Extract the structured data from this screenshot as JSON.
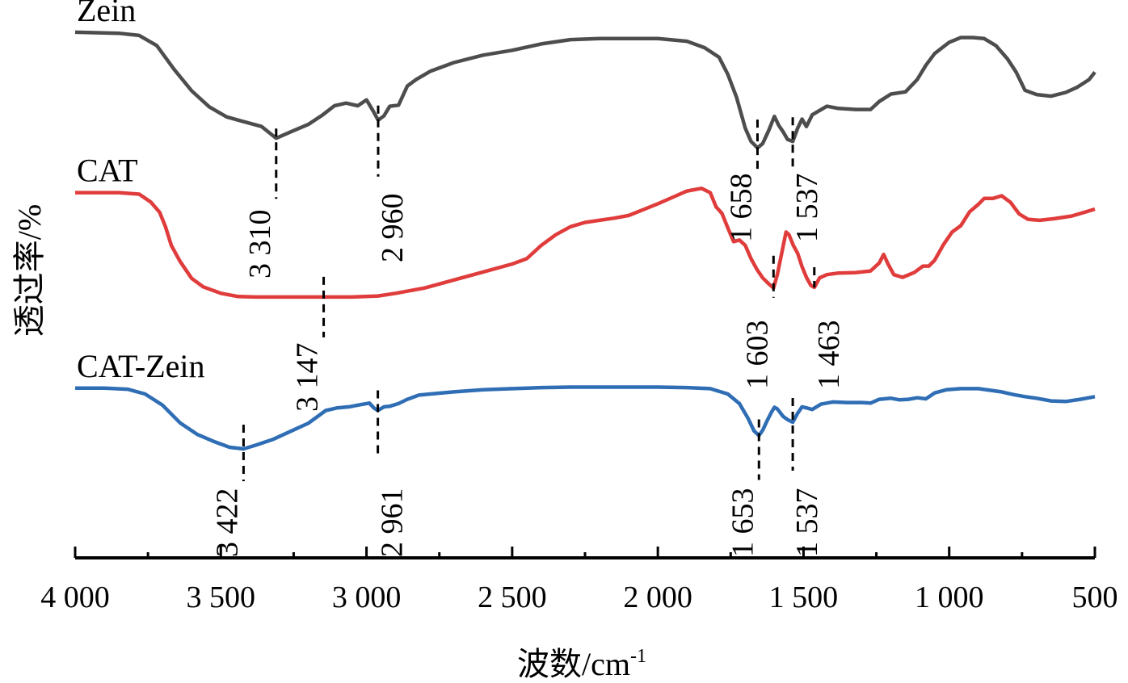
{
  "chart_data": {
    "type": "line",
    "title": "",
    "xlabel": "波数/cm⁻¹",
    "xlabel_main": "波数/cm",
    "xlabel_sup": "-1",
    "ylabel": "透过率/%",
    "xlim": [
      4000,
      500
    ],
    "ylim": [
      0,
      100
    ],
    "x_reversed": true,
    "grid": false,
    "legend": "inline-labels-left",
    "x_ticks": [
      4000,
      3500,
      3000,
      2500,
      2000,
      1500,
      1000,
      500
    ],
    "x_tick_labels": [
      "4 000",
      "3 500",
      "3 000",
      "2 500",
      "2 000",
      "1 500",
      "1 000",
      "500"
    ],
    "x_minor_ticks": [
      3750,
      3250,
      2750,
      2250,
      1750,
      1250,
      750
    ],
    "series": [
      {
        "name": "Zein",
        "color": "#4d4d4d",
        "points": [
          [
            4000,
            98.5
          ],
          [
            3850,
            98.3
          ],
          [
            3780,
            97.9
          ],
          [
            3720,
            96.0
          ],
          [
            3660,
            91.5
          ],
          [
            3600,
            87.5
          ],
          [
            3540,
            84.5
          ],
          [
            3480,
            82.6
          ],
          [
            3420,
            81.7
          ],
          [
            3360,
            80.8
          ],
          [
            3310,
            78.6
          ],
          [
            3260,
            79.8
          ],
          [
            3200,
            81.2
          ],
          [
            3150,
            83.0
          ],
          [
            3110,
            84.7
          ],
          [
            3070,
            85.2
          ],
          [
            3030,
            84.7
          ],
          [
            3000,
            85.8
          ],
          [
            2975,
            83.5
          ],
          [
            2960,
            82.0
          ],
          [
            2940,
            82.8
          ],
          [
            2920,
            84.6
          ],
          [
            2890,
            84.8
          ],
          [
            2860,
            88.4
          ],
          [
            2830,
            89.6
          ],
          [
            2780,
            91.2
          ],
          [
            2700,
            92.8
          ],
          [
            2600,
            94.2
          ],
          [
            2500,
            95.1
          ],
          [
            2400,
            96.3
          ],
          [
            2300,
            97.1
          ],
          [
            2200,
            97.3
          ],
          [
            2100,
            97.3
          ],
          [
            2000,
            97.3
          ],
          [
            1900,
            96.8
          ],
          [
            1840,
            95.6
          ],
          [
            1790,
            93.8
          ],
          [
            1760,
            90.6
          ],
          [
            1730,
            86.3
          ],
          [
            1700,
            80.5
          ],
          [
            1680,
            78.0
          ],
          [
            1658,
            76.8
          ],
          [
            1640,
            77.6
          ],
          [
            1620,
            80.0
          ],
          [
            1600,
            82.7
          ],
          [
            1585,
            81.0
          ],
          [
            1570,
            79.8
          ],
          [
            1555,
            78.4
          ],
          [
            1537,
            78.0
          ],
          [
            1520,
            80.5
          ],
          [
            1505,
            82.2
          ],
          [
            1490,
            80.8
          ],
          [
            1470,
            83.0
          ],
          [
            1420,
            84.6
          ],
          [
            1380,
            84.2
          ],
          [
            1320,
            84.0
          ],
          [
            1270,
            84.0
          ],
          [
            1240,
            85.5
          ],
          [
            1200,
            86.9
          ],
          [
            1150,
            87.3
          ],
          [
            1110,
            89.6
          ],
          [
            1080,
            92.3
          ],
          [
            1050,
            94.5
          ],
          [
            1000,
            96.6
          ],
          [
            960,
            97.5
          ],
          [
            920,
            97.5
          ],
          [
            880,
            97.3
          ],
          [
            840,
            96.0
          ],
          [
            800,
            93.5
          ],
          [
            770,
            91.0
          ],
          [
            740,
            87.6
          ],
          [
            700,
            86.8
          ],
          [
            650,
            86.5
          ],
          [
            600,
            87.2
          ],
          [
            560,
            88.2
          ],
          [
            520,
            89.6
          ],
          [
            500,
            91.0
          ]
        ]
      },
      {
        "name": "CAT",
        "color": "#e03c3c",
        "points": [
          [
            4000,
            68.4
          ],
          [
            3850,
            68.4
          ],
          [
            3780,
            68.1
          ],
          [
            3740,
            66.6
          ],
          [
            3710,
            64.7
          ],
          [
            3690,
            62.0
          ],
          [
            3670,
            58.5
          ],
          [
            3640,
            55.5
          ],
          [
            3600,
            52.3
          ],
          [
            3560,
            50.7
          ],
          [
            3500,
            49.5
          ],
          [
            3440,
            48.9
          ],
          [
            3380,
            48.8
          ],
          [
            3300,
            48.8
          ],
          [
            3200,
            48.8
          ],
          [
            3147,
            48.8
          ],
          [
            3050,
            48.8
          ],
          [
            2960,
            49.0
          ],
          [
            2900,
            49.5
          ],
          [
            2800,
            50.5
          ],
          [
            2700,
            52.0
          ],
          [
            2600,
            53.5
          ],
          [
            2500,
            55.0
          ],
          [
            2450,
            56.0
          ],
          [
            2400,
            58.5
          ],
          [
            2350,
            60.5
          ],
          [
            2300,
            62.0
          ],
          [
            2250,
            62.8
          ],
          [
            2150,
            63.6
          ],
          [
            2100,
            64.1
          ],
          [
            2050,
            65.2
          ],
          [
            2000,
            66.3
          ],
          [
            1950,
            67.5
          ],
          [
            1900,
            68.7
          ],
          [
            1850,
            69.2
          ],
          [
            1820,
            68.4
          ],
          [
            1800,
            65.7
          ],
          [
            1780,
            64.5
          ],
          [
            1760,
            61.8
          ],
          [
            1740,
            59.2
          ],
          [
            1720,
            59.5
          ],
          [
            1700,
            58.5
          ],
          [
            1680,
            56.0
          ],
          [
            1660,
            54.0
          ],
          [
            1640,
            52.4
          ],
          [
            1620,
            51.3
          ],
          [
            1603,
            50.5
          ],
          [
            1590,
            53.0
          ],
          [
            1575,
            57.0
          ],
          [
            1560,
            61.0
          ],
          [
            1550,
            60.5
          ],
          [
            1535,
            58.5
          ],
          [
            1520,
            57.0
          ],
          [
            1505,
            54.5
          ],
          [
            1490,
            52.5
          ],
          [
            1475,
            51.0
          ],
          [
            1463,
            50.6
          ],
          [
            1445,
            52.4
          ],
          [
            1420,
            53.0
          ],
          [
            1380,
            53.3
          ],
          [
            1320,
            53.4
          ],
          [
            1270,
            53.7
          ],
          [
            1240,
            55.2
          ],
          [
            1225,
            56.8
          ],
          [
            1210,
            55.0
          ],
          [
            1190,
            53.0
          ],
          [
            1160,
            52.5
          ],
          [
            1120,
            53.4
          ],
          [
            1090,
            54.6
          ],
          [
            1070,
            54.6
          ],
          [
            1050,
            55.7
          ],
          [
            1020,
            58.6
          ],
          [
            990,
            61.0
          ],
          [
            960,
            62.2
          ],
          [
            930,
            64.8
          ],
          [
            900,
            66.2
          ],
          [
            880,
            67.3
          ],
          [
            850,
            67.3
          ],
          [
            820,
            67.8
          ],
          [
            790,
            66.6
          ],
          [
            760,
            64.4
          ],
          [
            730,
            63.4
          ],
          [
            690,
            63.2
          ],
          [
            640,
            63.5
          ],
          [
            580,
            64.0
          ],
          [
            530,
            64.8
          ],
          [
            500,
            65.3
          ]
        ]
      },
      {
        "name": "CAT-Zein",
        "color": "#2f6db5",
        "points": [
          [
            4000,
            31.7
          ],
          [
            3900,
            31.7
          ],
          [
            3820,
            31.5
          ],
          [
            3760,
            30.6
          ],
          [
            3700,
            28.5
          ],
          [
            3640,
            25.2
          ],
          [
            3580,
            23.0
          ],
          [
            3520,
            21.6
          ],
          [
            3470,
            20.6
          ],
          [
            3422,
            20.3
          ],
          [
            3380,
            21.0
          ],
          [
            3320,
            22.1
          ],
          [
            3260,
            23.6
          ],
          [
            3200,
            25.1
          ],
          [
            3140,
            27.5
          ],
          [
            3100,
            28.0
          ],
          [
            3060,
            28.2
          ],
          [
            3020,
            28.6
          ],
          [
            2990,
            28.9
          ],
          [
            2975,
            28.0
          ],
          [
            2961,
            27.5
          ],
          [
            2940,
            28.2
          ],
          [
            2920,
            28.3
          ],
          [
            2890,
            28.8
          ],
          [
            2860,
            29.6
          ],
          [
            2820,
            30.4
          ],
          [
            2780,
            30.6
          ],
          [
            2700,
            31.0
          ],
          [
            2600,
            31.4
          ],
          [
            2500,
            31.6
          ],
          [
            2400,
            31.8
          ],
          [
            2300,
            31.9
          ],
          [
            2200,
            31.9
          ],
          [
            2100,
            31.9
          ],
          [
            2000,
            31.9
          ],
          [
            1900,
            31.8
          ],
          [
            1820,
            31.6
          ],
          [
            1760,
            30.6
          ],
          [
            1720,
            28.8
          ],
          [
            1690,
            26.0
          ],
          [
            1670,
            23.7
          ],
          [
            1653,
            22.8
          ],
          [
            1640,
            23.8
          ],
          [
            1625,
            25.6
          ],
          [
            1610,
            27.2
          ],
          [
            1600,
            28.1
          ],
          [
            1590,
            27.8
          ],
          [
            1570,
            26.4
          ],
          [
            1555,
            25.8
          ],
          [
            1537,
            25.3
          ],
          [
            1520,
            27.0
          ],
          [
            1505,
            28.2
          ],
          [
            1490,
            28.0
          ],
          [
            1470,
            27.7
          ],
          [
            1440,
            28.7
          ],
          [
            1400,
            29.1
          ],
          [
            1350,
            29.0
          ],
          [
            1300,
            29.0
          ],
          [
            1270,
            28.9
          ],
          [
            1240,
            29.6
          ],
          [
            1200,
            29.8
          ],
          [
            1170,
            29.5
          ],
          [
            1140,
            29.6
          ],
          [
            1110,
            29.9
          ],
          [
            1080,
            29.7
          ],
          [
            1050,
            30.8
          ],
          [
            1010,
            31.4
          ],
          [
            960,
            31.6
          ],
          [
            900,
            31.6
          ],
          [
            860,
            31.3
          ],
          [
            820,
            31.0
          ],
          [
            780,
            30.5
          ],
          [
            740,
            30.1
          ],
          [
            700,
            29.8
          ],
          [
            650,
            29.3
          ],
          [
            600,
            29.2
          ],
          [
            550,
            29.6
          ],
          [
            500,
            30.1
          ]
        ]
      }
    ],
    "annotations": [
      {
        "series": "Zein",
        "wavenumber": 3310,
        "label": "3 310"
      },
      {
        "series": "Zein",
        "wavenumber": 2960,
        "label": "2 960"
      },
      {
        "series": "Zein",
        "wavenumber": 1658,
        "label": "1 658"
      },
      {
        "series": "Zein",
        "wavenumber": 1537,
        "label": "1 537"
      },
      {
        "series": "CAT",
        "wavenumber": 3147,
        "label": "3 147"
      },
      {
        "series": "CAT",
        "wavenumber": 1603,
        "label": "1 603"
      },
      {
        "series": "CAT",
        "wavenumber": 1463,
        "label": "1 463"
      },
      {
        "series": "CAT-Zein",
        "wavenumber": 3422,
        "label": "3 422"
      },
      {
        "series": "CAT-Zein",
        "wavenumber": 2961,
        "label": "2 961"
      },
      {
        "series": "CAT-Zein",
        "wavenumber": 1653,
        "label": "1 653"
      },
      {
        "series": "CAT-Zein",
        "wavenumber": 1537,
        "label": "1 537"
      }
    ]
  }
}
